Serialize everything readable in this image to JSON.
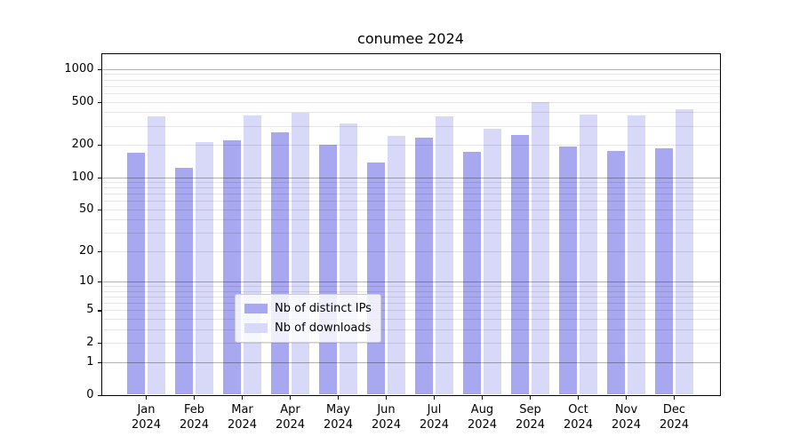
{
  "chart_data": {
    "type": "bar",
    "title": "conumee 2024",
    "categories": [
      "Jan 2024",
      "Feb 2024",
      "Mar 2024",
      "Apr 2024",
      "May 2024",
      "Jun 2024",
      "Jul 2024",
      "Aug 2024",
      "Sep 2024",
      "Oct 2024",
      "Nov 2024",
      "Dec 2024"
    ],
    "series": [
      {
        "name": "Nb of distinct IPs",
        "color": "#a8a8f0",
        "values": [
          170,
          123,
          222,
          260,
          200,
          138,
          235,
          171,
          245,
          193,
          174,
          187
        ]
      },
      {
        "name": "Nb of downloads",
        "color": "#d8d8f8",
        "values": [
          370,
          210,
          375,
          395,
          315,
          240,
          370,
          280,
          495,
          380,
          372,
          425
        ]
      }
    ],
    "xlabel": "",
    "ylabel": "",
    "yscale": "log1p",
    "yticks": [
      0,
      1,
      2,
      5,
      10,
      20,
      50,
      100,
      200,
      500,
      1000
    ],
    "ylim": [
      0,
      1400
    ],
    "grid": true,
    "legend_position": "lower center"
  },
  "colors": {
    "background": "#ffffff",
    "axis": "#000000",
    "grid_major": "rgba(0,0,0,0.30)",
    "grid_minor": "rgba(0,0,0,0.10)",
    "legend_border": "#cccccc"
  }
}
